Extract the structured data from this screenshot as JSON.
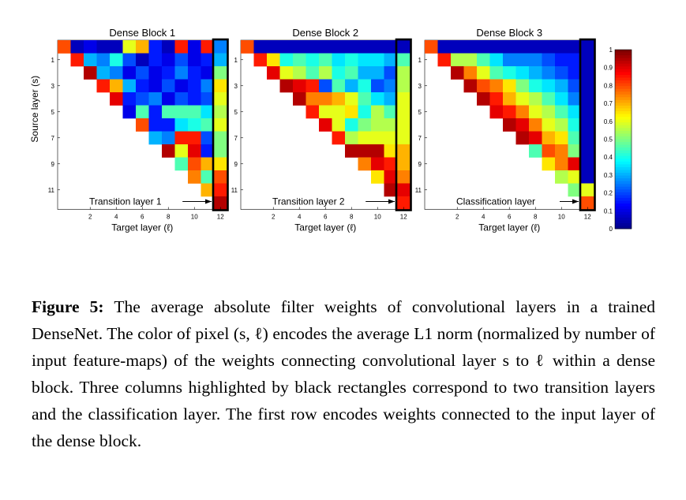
{
  "colormap": [
    "#00008f",
    "#0000ff",
    "#0080ff",
    "#00ffff",
    "#80ff80",
    "#ffff00",
    "#ff8000",
    "#ff0000",
    "#800000"
  ],
  "highlight_color": "#000000",
  "colorbar": {
    "ticks": [
      "0",
      "0.1",
      "0.2",
      "0.3",
      "0.4",
      "0.5",
      "0.6",
      "0.7",
      "0.8",
      "0.9",
      "1"
    ]
  },
  "chart_data": [
    {
      "type": "heatmap",
      "title": "Dense Block 1",
      "xlabel": "Target layer (ℓ)",
      "ylabel": "Source layer (s)",
      "arrow_label": "Transition layer 1",
      "x_ticks": [
        "2",
        "4",
        "6",
        "8",
        "10",
        "12"
      ],
      "y_ticks": [
        "1",
        "3",
        "5",
        "7",
        "9",
        "11"
      ],
      "value_range": [
        0,
        1
      ],
      "values": [
        [
          0.8,
          0.05,
          0.1,
          0.05,
          0.05,
          0.6,
          0.7,
          0.15,
          0.05,
          0.85,
          0.1,
          0.85,
          0.25
        ],
        [
          null,
          0.85,
          0.3,
          0.25,
          0.4,
          0.2,
          0.05,
          0.15,
          0.1,
          0.2,
          0.1,
          0.15,
          0.3
        ],
        [
          null,
          null,
          0.95,
          0.3,
          0.25,
          0.1,
          0.2,
          0.1,
          0.15,
          0.25,
          0.15,
          0.1,
          0.5
        ],
        [
          null,
          null,
          null,
          0.85,
          0.7,
          0.3,
          0.15,
          0.1,
          0.2,
          0.1,
          0.15,
          0.25,
          0.65
        ],
        [
          null,
          null,
          null,
          null,
          0.9,
          0.15,
          0.2,
          0.25,
          0.1,
          0.2,
          0.15,
          0.2,
          0.6
        ],
        [
          null,
          null,
          null,
          null,
          null,
          0.1,
          0.45,
          0.15,
          0.45,
          0.45,
          0.45,
          0.35,
          0.55
        ],
        [
          null,
          null,
          null,
          null,
          null,
          null,
          0.8,
          0.15,
          0.15,
          0.35,
          0.4,
          0.45,
          0.6
        ],
        [
          null,
          null,
          null,
          null,
          null,
          null,
          null,
          0.3,
          0.25,
          0.85,
          0.85,
          0.2,
          0.5
        ],
        [
          null,
          null,
          null,
          null,
          null,
          null,
          null,
          null,
          0.95,
          0.6,
          0.9,
          0.15,
          0.5
        ],
        [
          null,
          null,
          null,
          null,
          null,
          null,
          null,
          null,
          null,
          0.45,
          0.8,
          0.7,
          0.65
        ],
        [
          null,
          null,
          null,
          null,
          null,
          null,
          null,
          null,
          null,
          null,
          0.75,
          0.45,
          0.8
        ],
        [
          null,
          null,
          null,
          null,
          null,
          null,
          null,
          null,
          null,
          null,
          null,
          0.7,
          0.85
        ],
        [
          null,
          null,
          null,
          null,
          null,
          null,
          null,
          null,
          null,
          null,
          null,
          null,
          0.95
        ]
      ]
    },
    {
      "type": "heatmap",
      "title": "Dense Block 2",
      "xlabel": "Target layer (ℓ)",
      "arrow_label": "Transition layer 2",
      "x_ticks": [
        "2",
        "4",
        "6",
        "8",
        "10",
        "12"
      ],
      "y_ticks": [
        "1",
        "3",
        "5",
        "7",
        "9",
        "11"
      ],
      "value_range": [
        0,
        1
      ],
      "values": [
        [
          0.8,
          0.05,
          0.05,
          0.05,
          0.05,
          0.05,
          0.05,
          0.05,
          0.05,
          0.05,
          0.05,
          0.05,
          0.05
        ],
        [
          null,
          0.85,
          0.65,
          0.4,
          0.45,
          0.4,
          0.45,
          0.35,
          0.4,
          0.35,
          0.35,
          0.3,
          0.45
        ],
        [
          null,
          null,
          0.9,
          0.6,
          0.55,
          0.45,
          0.55,
          0.4,
          0.45,
          0.3,
          0.3,
          0.2,
          0.55
        ],
        [
          null,
          null,
          null,
          0.95,
          0.9,
          0.85,
          0.2,
          0.45,
          0.3,
          0.4,
          0.2,
          0.25,
          0.55
        ],
        [
          null,
          null,
          null,
          null,
          0.95,
          0.75,
          0.75,
          0.7,
          0.6,
          0.45,
          0.35,
          0.3,
          0.6
        ],
        [
          null,
          null,
          null,
          null,
          null,
          0.85,
          0.6,
          0.6,
          0.65,
          0.4,
          0.55,
          0.45,
          0.6
        ],
        [
          null,
          null,
          null,
          null,
          null,
          null,
          0.9,
          0.6,
          0.4,
          0.5,
          0.55,
          0.55,
          0.6
        ],
        [
          null,
          null,
          null,
          null,
          null,
          null,
          null,
          0.85,
          0.55,
          0.6,
          0.6,
          0.6,
          0.6
        ],
        [
          null,
          null,
          null,
          null,
          null,
          null,
          null,
          null,
          0.95,
          0.95,
          0.95,
          0.65,
          0.7
        ],
        [
          null,
          null,
          null,
          null,
          null,
          null,
          null,
          null,
          null,
          0.75,
          0.9,
          0.85,
          0.7
        ],
        [
          null,
          null,
          null,
          null,
          null,
          null,
          null,
          null,
          null,
          null,
          0.65,
          0.9,
          0.75
        ],
        [
          null,
          null,
          null,
          null,
          null,
          null,
          null,
          null,
          null,
          null,
          null,
          0.95,
          0.9
        ],
        [
          null,
          null,
          null,
          null,
          null,
          null,
          null,
          null,
          null,
          null,
          null,
          null,
          0.85
        ]
      ]
    },
    {
      "type": "heatmap",
      "title": "Dense Block 3",
      "xlabel": "Target layer (ℓ)",
      "arrow_label": "Classification layer",
      "x_ticks": [
        "2",
        "4",
        "6",
        "8",
        "10",
        "12"
      ],
      "y_ticks": [
        "1",
        "3",
        "5",
        "7",
        "9",
        "11"
      ],
      "value_range": [
        0,
        1
      ],
      "values": [
        [
          0.8,
          0.05,
          0.05,
          0.05,
          0.05,
          0.05,
          0.05,
          0.05,
          0.05,
          0.05,
          0.05,
          0.05,
          0.05
        ],
        [
          null,
          0.85,
          0.55,
          0.55,
          0.45,
          0.35,
          0.25,
          0.25,
          0.25,
          0.2,
          0.15,
          0.15,
          0.05
        ],
        [
          null,
          null,
          0.95,
          0.75,
          0.6,
          0.45,
          0.4,
          0.35,
          0.3,
          0.25,
          0.2,
          0.15,
          0.05
        ],
        [
          null,
          null,
          null,
          0.95,
          0.8,
          0.75,
          0.65,
          0.5,
          0.4,
          0.35,
          0.3,
          0.2,
          0.05
        ],
        [
          null,
          null,
          null,
          null,
          0.95,
          0.85,
          0.7,
          0.6,
          0.55,
          0.45,
          0.35,
          0.25,
          0.05
        ],
        [
          null,
          null,
          null,
          null,
          null,
          0.9,
          0.85,
          0.75,
          0.6,
          0.55,
          0.45,
          0.35,
          0.05
        ],
        [
          null,
          null,
          null,
          null,
          null,
          null,
          0.95,
          0.9,
          0.75,
          0.6,
          0.55,
          0.4,
          0.05
        ],
        [
          null,
          null,
          null,
          null,
          null,
          null,
          null,
          0.95,
          0.9,
          0.7,
          0.65,
          0.45,
          0.05
        ],
        [
          null,
          null,
          null,
          null,
          null,
          null,
          null,
          null,
          0.45,
          0.8,
          0.75,
          0.5,
          0.05
        ],
        [
          null,
          null,
          null,
          null,
          null,
          null,
          null,
          null,
          null,
          0.65,
          0.75,
          0.9,
          0.05
        ],
        [
          null,
          null,
          null,
          null,
          null,
          null,
          null,
          null,
          null,
          null,
          0.55,
          0.6,
          0.05
        ],
        [
          null,
          null,
          null,
          null,
          null,
          null,
          null,
          null,
          null,
          null,
          null,
          0.5,
          0.6
        ],
        [
          null,
          null,
          null,
          null,
          null,
          null,
          null,
          null,
          null,
          null,
          null,
          null,
          0.8
        ]
      ]
    }
  ],
  "caption": {
    "label": "Figure 5:",
    "text": " The average absolute filter weights of convolutional layers in a trained DenseNet. The color of pixel (s, ℓ) encodes the average L1 norm (normalized by number of input feature-maps) of the weights connecting convolutional layer s to ℓ within a dense block. Three columns highlighted by black rectangles correspond to two transition layers and the classification layer. The first row encodes weights connected to the input layer of the dense block."
  }
}
